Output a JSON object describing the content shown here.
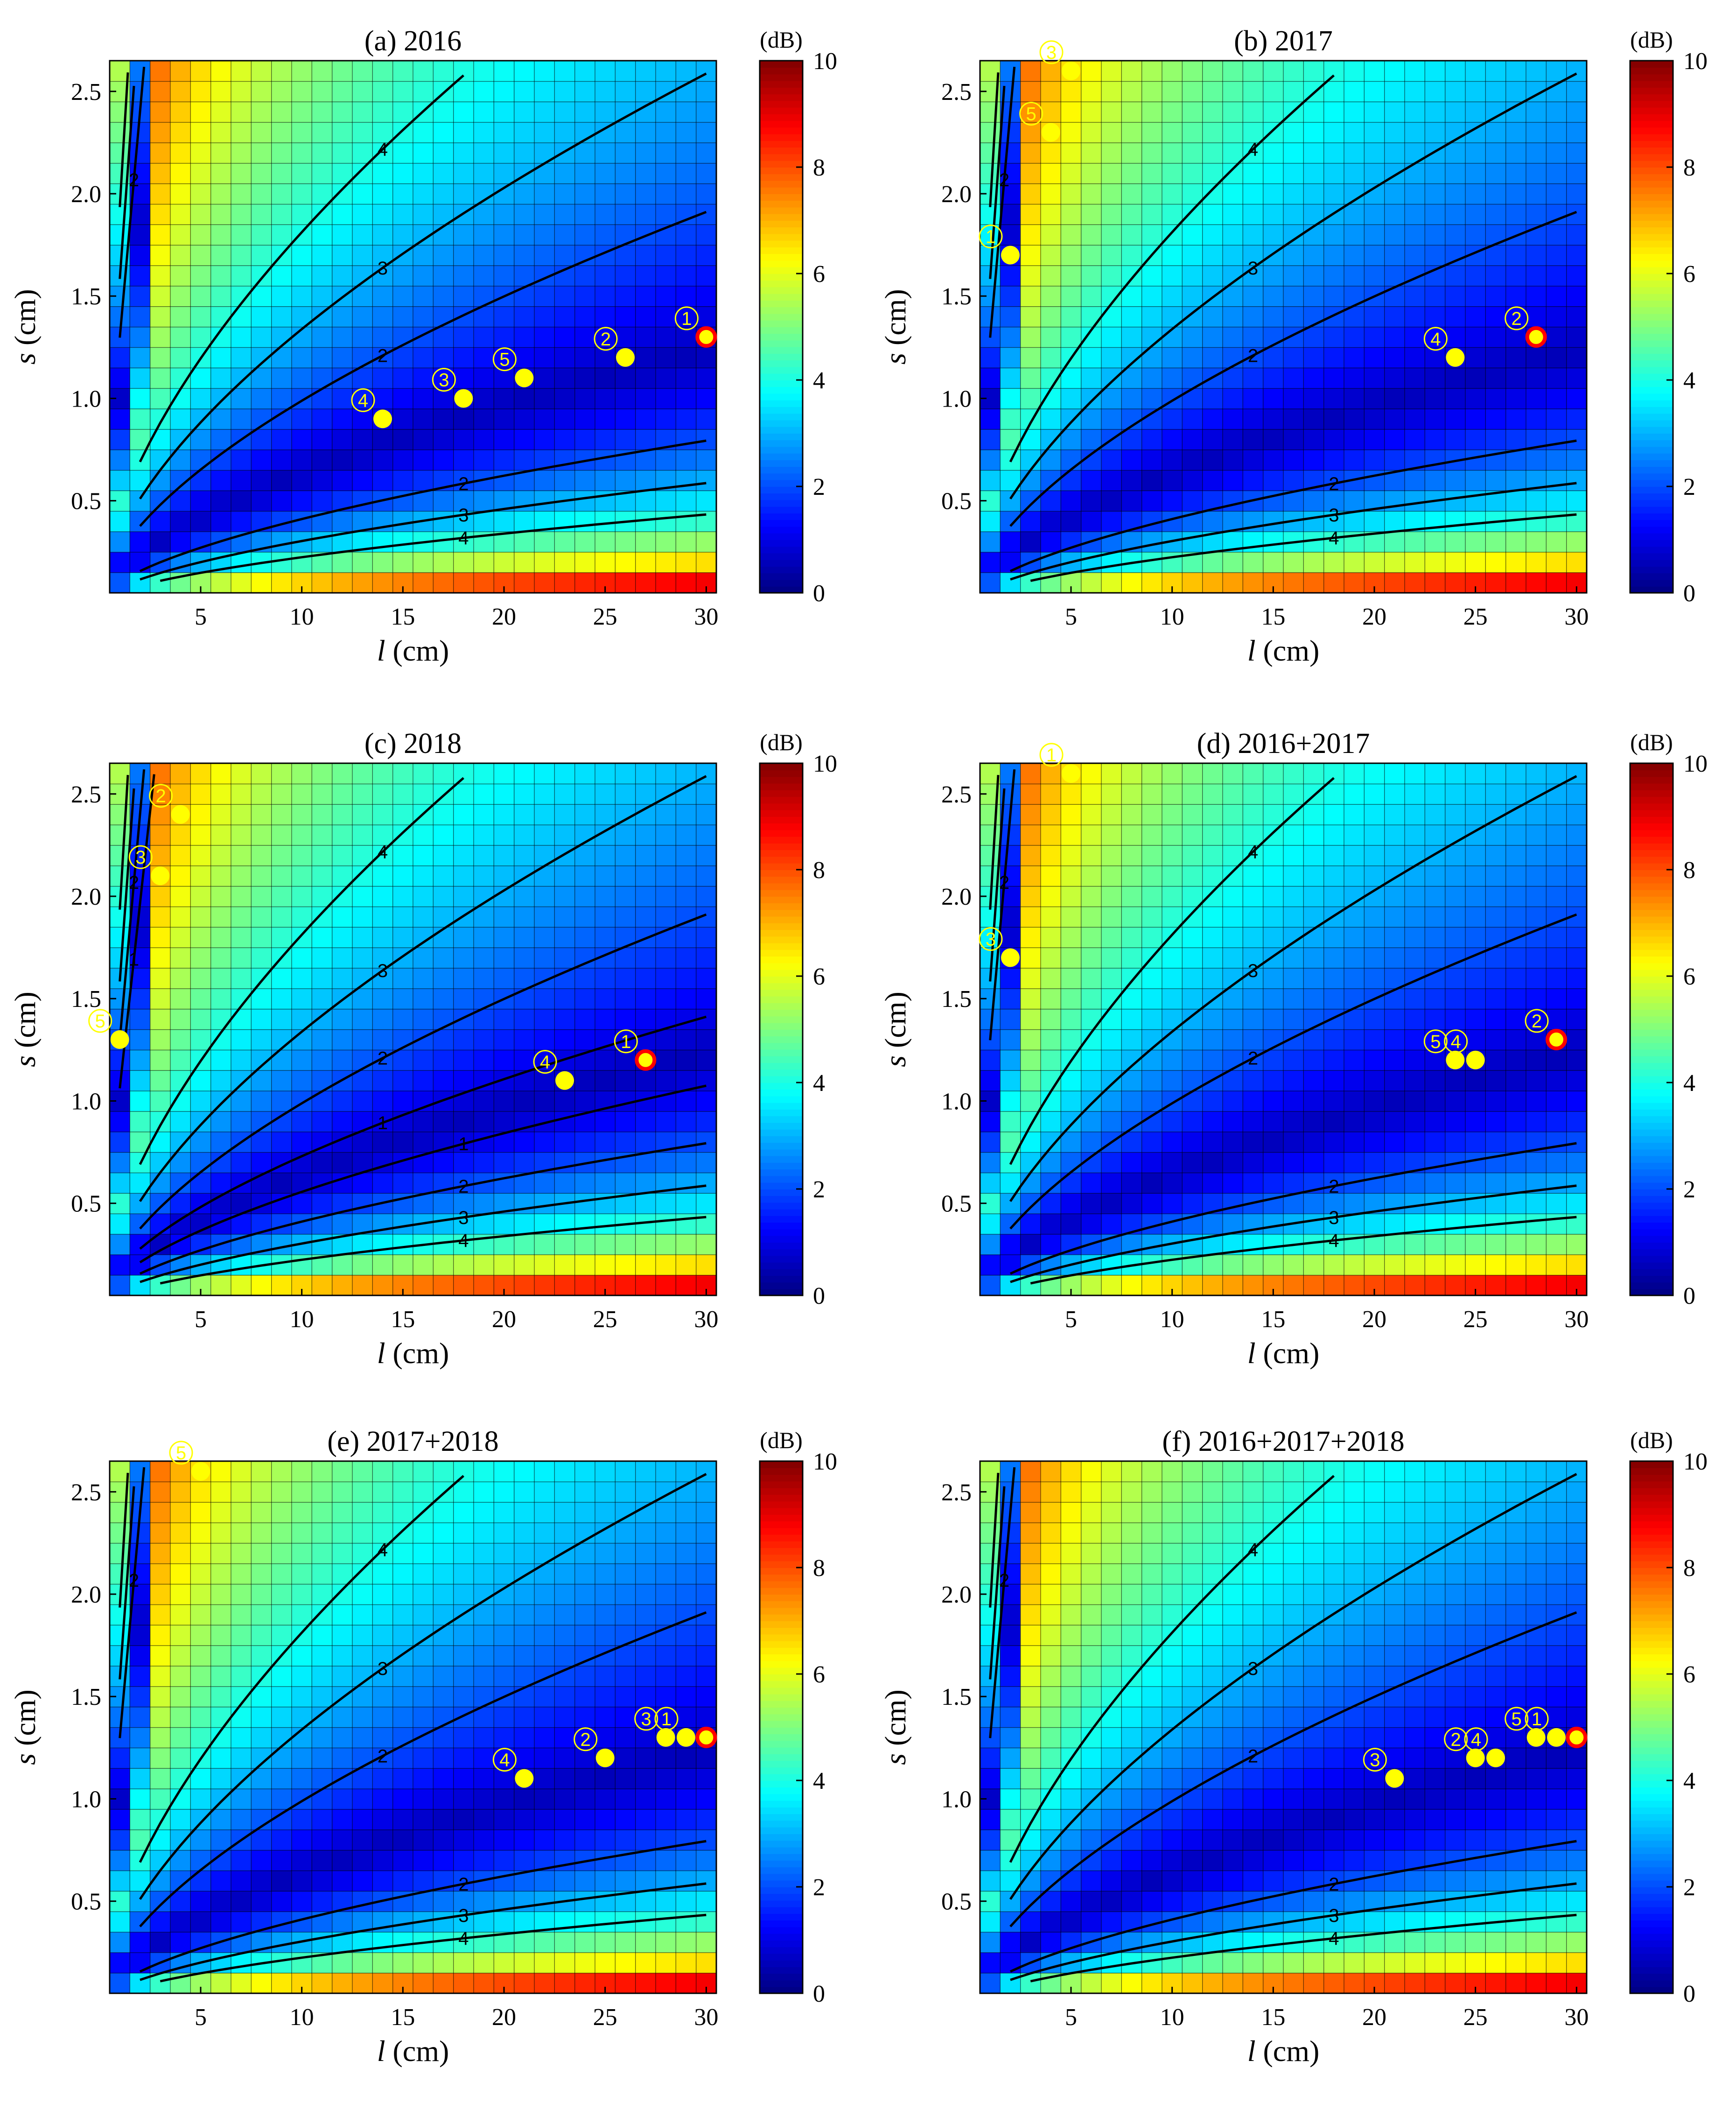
{
  "chart_data": {
    "type": "heatmap",
    "units": "(dB)",
    "xlabel": [
      "l",
      " (cm)"
    ],
    "ylabel": [
      "s",
      " (cm)"
    ],
    "colorbar": {
      "label": "(dB)",
      "range": [
        0,
        10
      ],
      "ticks": [
        0,
        2,
        4,
        6,
        8,
        10
      ]
    },
    "grid": {
      "l_range": [
        1,
        30
      ],
      "l_step": 1,
      "s_range": [
        0.1,
        2.6
      ],
      "s_step": 0.1
    },
    "xlim": [
      0.5,
      30.5
    ],
    "ylim": [
      0.05,
      2.65
    ],
    "xticks": [
      5,
      10,
      15,
      20,
      25,
      30
    ],
    "yticks": [
      0.5,
      1.0,
      1.5,
      2.0,
      2.5
    ],
    "yticklabels": [
      "0.5",
      "1.0",
      "1.5",
      "2.0",
      "2.5"
    ],
    "contour_levels": [
      1,
      2,
      3,
      4
    ],
    "panels": [
      {
        "title": "(a) 2016",
        "points": [
          {
            "l": 30,
            "s": 1.3,
            "label": "1",
            "best": true
          },
          {
            "l": 26,
            "s": 1.2,
            "label": "2",
            "best": false
          },
          {
            "l": 18,
            "s": 1.0,
            "label": "3",
            "best": false
          },
          {
            "l": 14,
            "s": 0.9,
            "label": "4",
            "best": false
          },
          {
            "l": 21,
            "s": 1.1,
            "label": "5",
            "best": false
          }
        ]
      },
      {
        "title": "(b) 2017",
        "points": [
          {
            "l": 28,
            "s": 1.3,
            "label": "2",
            "best": true
          },
          {
            "l": 24,
            "s": 1.2,
            "label": "4",
            "best": false
          },
          {
            "l": 5,
            "s": 2.6,
            "label": "3",
            "best": false
          },
          {
            "l": 4,
            "s": 2.3,
            "label": "5",
            "best": false
          },
          {
            "l": 2,
            "s": 1.7,
            "label": "1",
            "best": false
          }
        ]
      },
      {
        "title": "(c) 2018",
        "points": [
          {
            "l": 27,
            "s": 1.2,
            "label": "1",
            "best": true
          },
          {
            "l": 23,
            "s": 1.1,
            "label": "4",
            "best": false
          },
          {
            "l": 4,
            "s": 2.4,
            "label": "2",
            "best": false
          },
          {
            "l": 3,
            "s": 2.1,
            "label": "3",
            "best": false
          },
          {
            "l": 1,
            "s": 1.3,
            "label": "5",
            "best": false
          }
        ]
      },
      {
        "title": "(d) 2016+2017",
        "points": [
          {
            "l": 29,
            "s": 1.3,
            "label": "2",
            "best": true
          },
          {
            "l": 24,
            "s": 1.2,
            "label": "5",
            "best": false
          },
          {
            "l": 25,
            "s": 1.2,
            "label": "4",
            "best": false
          },
          {
            "l": 5,
            "s": 2.6,
            "label": "1",
            "best": false
          },
          {
            "l": 2,
            "s": 1.7,
            "label": "3",
            "best": false
          }
        ]
      },
      {
        "title": "(e) 2017+2018",
        "points": [
          {
            "l": 30,
            "s": 1.3,
            "label": "",
            "best": true
          },
          {
            "l": 29,
            "s": 1.3,
            "label": "1",
            "best": false
          },
          {
            "l": 28,
            "s": 1.3,
            "label": "3",
            "best": false
          },
          {
            "l": 25,
            "s": 1.2,
            "label": "2",
            "best": false
          },
          {
            "l": 21,
            "s": 1.1,
            "label": "4",
            "best": false
          },
          {
            "l": 5,
            "s": 2.6,
            "label": "5",
            "best": false
          }
        ]
      },
      {
        "title": "(f) 2016+2017+2018",
        "points": [
          {
            "l": 30,
            "s": 1.3,
            "label": "",
            "best": true
          },
          {
            "l": 29,
            "s": 1.3,
            "label": "1",
            "best": false
          },
          {
            "l": 28,
            "s": 1.3,
            "label": "5",
            "best": false
          },
          {
            "l": 25,
            "s": 1.2,
            "label": "2",
            "best": false
          },
          {
            "l": 26,
            "s": 1.2,
            "label": "4",
            "best": false
          },
          {
            "l": 21,
            "s": 1.1,
            "label": "3",
            "best": false
          }
        ]
      }
    ]
  }
}
